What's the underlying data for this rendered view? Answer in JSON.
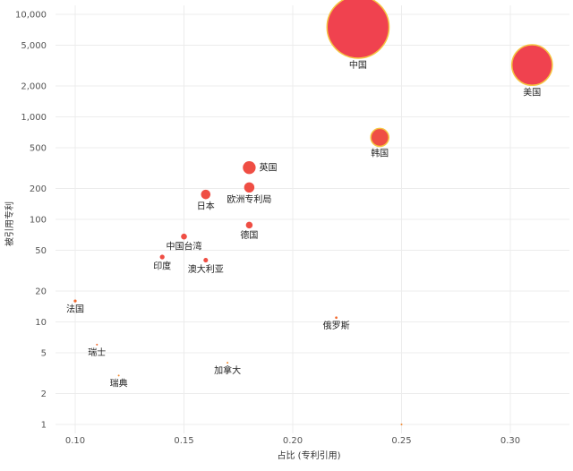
{
  "chart_data": {
    "type": "scatter",
    "xlabel": "占比 (专利引用)",
    "ylabel": "被引用专利",
    "yscale": "log",
    "xlim": [
      0.09,
      0.33
    ],
    "ylim": [
      0.9,
      11000
    ],
    "grid": true,
    "xticks": [
      {
        "value": 0.1,
        "label": "0.10"
      },
      {
        "value": 0.15,
        "label": "0.15"
      },
      {
        "value": 0.2,
        "label": "0.20"
      },
      {
        "value": 0.25,
        "label": "0.25"
      },
      {
        "value": 0.3,
        "label": "0.30"
      }
    ],
    "yticks": [
      {
        "value": 1,
        "label": "1"
      },
      {
        "value": 2,
        "label": "2"
      },
      {
        "value": 5,
        "label": "5"
      },
      {
        "value": 10,
        "label": "10"
      },
      {
        "value": 20,
        "label": "20"
      },
      {
        "value": 50,
        "label": "50"
      },
      {
        "value": 100,
        "label": "100"
      },
      {
        "value": 200,
        "label": "200"
      },
      {
        "value": 500,
        "label": "500"
      },
      {
        "value": 1000,
        "label": "1,000"
      },
      {
        "value": 2000,
        "label": "2,000"
      },
      {
        "value": 5000,
        "label": "5,000"
      },
      {
        "value": 10000,
        "label": "10,000"
      }
    ],
    "colors": {
      "large": "#f0424f",
      "medium": "#ef4e44",
      "small": "#f2682c",
      "tiny": "#f28a30",
      "outline": "#f5c542"
    },
    "points": [
      {
        "label": "中国",
        "x": 0.23,
        "y": 7500,
        "labelPos": "below"
      },
      {
        "label": "美国",
        "x": 0.31,
        "y": 3200,
        "labelPos": "below"
      },
      {
        "label": "韩国",
        "x": 0.24,
        "y": 630,
        "labelPos": "below"
      },
      {
        "label": "英国",
        "x": 0.18,
        "y": 320,
        "labelPos": "right"
      },
      {
        "label": "欧洲专利局",
        "x": 0.18,
        "y": 205,
        "labelPos": "below"
      },
      {
        "label": "日本",
        "x": 0.16,
        "y": 175,
        "labelPos": "below"
      },
      {
        "label": "德国",
        "x": 0.18,
        "y": 88,
        "labelPos": "below"
      },
      {
        "label": "中国台湾",
        "x": 0.15,
        "y": 68,
        "labelPos": "below"
      },
      {
        "label": "印度",
        "x": 0.14,
        "y": 43,
        "labelPos": "below"
      },
      {
        "label": "澳大利亚",
        "x": 0.16,
        "y": 40,
        "labelPos": "below"
      },
      {
        "label": "法国",
        "x": 0.1,
        "y": 16,
        "labelPos": "below"
      },
      {
        "label": "俄罗斯",
        "x": 0.22,
        "y": 11,
        "labelPos": "below"
      },
      {
        "label": "瑞士",
        "x": 0.11,
        "y": 6,
        "labelPos": "below"
      },
      {
        "label": "加拿大",
        "x": 0.17,
        "y": 4,
        "labelPos": "below"
      },
      {
        "label": "瑞典",
        "x": 0.12,
        "y": 3,
        "labelPos": "below"
      },
      {
        "label": "",
        "x": 0.25,
        "y": 1,
        "labelPos": "none"
      }
    ]
  }
}
